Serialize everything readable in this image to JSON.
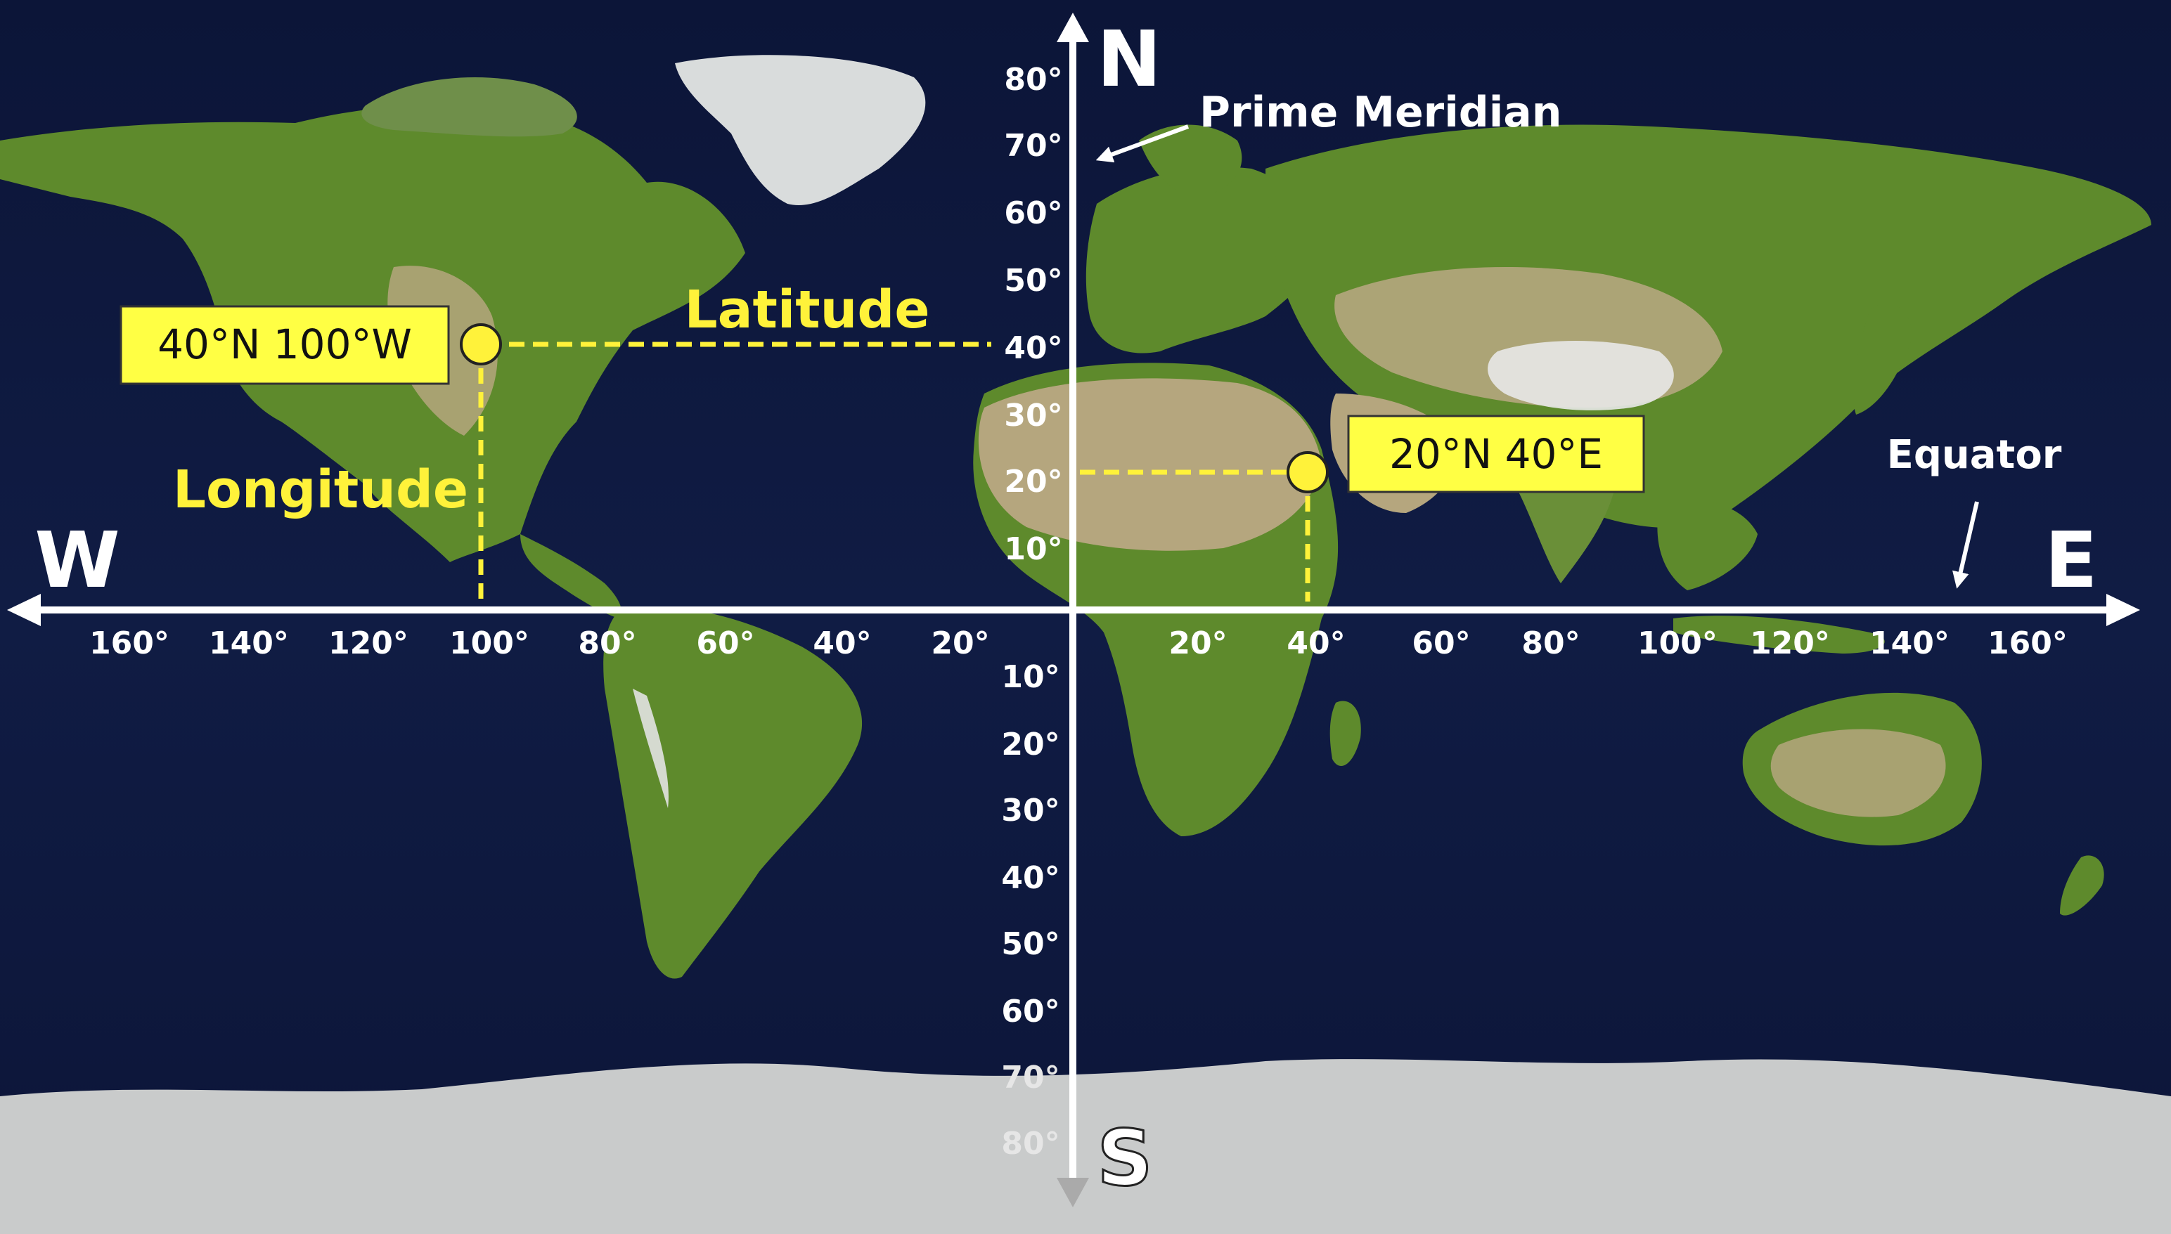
{
  "compass": {
    "north": "N",
    "south": "S",
    "west": "W",
    "east": "E"
  },
  "annotations": {
    "prime_meridian": "Prime Meridian",
    "equator": "Equator",
    "latitude": "Latitude",
    "longitude": "Longitude"
  },
  "lon_labels_west": [
    "160°",
    "140°",
    "120°",
    "100°",
    "80°",
    "60°",
    "40°",
    "20°"
  ],
  "lon_labels_east": [
    "20°",
    "40°",
    "60°",
    "80°",
    "100°",
    "120°",
    "140°",
    "160°"
  ],
  "lat_labels_north": [
    "80°",
    "70°",
    "60°",
    "50°",
    "40°",
    "30°",
    "20°",
    "10°"
  ],
  "lat_labels_south": [
    "10°",
    "20°",
    "30°",
    "40°",
    "50°",
    "60°",
    "70°",
    "80°"
  ],
  "points": [
    {
      "label": "40°N 100°W",
      "lat": 40,
      "lon": -100
    },
    {
      "label": "20°N 40°E",
      "lat": 20,
      "lon": 40
    }
  ],
  "colors": {
    "ocean": "#0f1a3e",
    "vegetation": "#5e8a2c",
    "desert": "#b5a67e",
    "ice": "#d4d6d6",
    "axis": "#ffffff",
    "highlight": "#fff23a",
    "label_bg": "#ffff44"
  }
}
